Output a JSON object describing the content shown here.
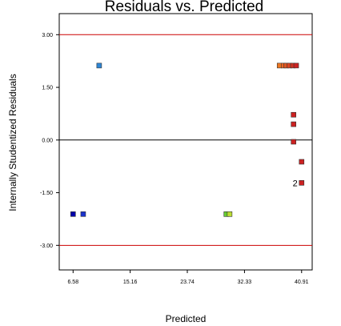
{
  "chart_data": {
    "type": "scatter",
    "title": "Residuals vs. Predicted",
    "xlabel": "Predicted",
    "ylabel": "Internally Studentized Residuals",
    "xlim": [
      4.5,
      42.5
    ],
    "ylim": [
      -3.7,
      3.6
    ],
    "x_ticks": [
      {
        "value": 6.58,
        "label": "6.58"
      },
      {
        "value": 15.16,
        "label": "15.16"
      },
      {
        "value": 23.74,
        "label": "23.74"
      },
      {
        "value": 32.33,
        "label": "32.33"
      },
      {
        "value": 40.91,
        "label": "40.91"
      }
    ],
    "y_ticks": [
      {
        "value": 3.0,
        "label": "3.00"
      },
      {
        "value": 1.5,
        "label": "1.50"
      },
      {
        "value": 0.0,
        "label": "0.00"
      },
      {
        "value": -1.5,
        "label": "-1.50"
      },
      {
        "value": -3.0,
        "label": "-3.00"
      }
    ],
    "reference_lines": [
      {
        "y": 3.0,
        "color": "#cc0000"
      },
      {
        "y": 0.0,
        "color": "#000000"
      },
      {
        "y": -3.0,
        "color": "#cc0000"
      }
    ],
    "grid": false,
    "points": [
      {
        "x": 6.58,
        "y": -2.11,
        "color": "#0000aa"
      },
      {
        "x": 8.1,
        "y": -2.11,
        "color": "#1a33cc"
      },
      {
        "x": 10.5,
        "y": 2.12,
        "color": "#2e86d6"
      },
      {
        "x": 29.6,
        "y": -2.11,
        "color": "#66cc33"
      },
      {
        "x": 30.1,
        "y": -2.11,
        "color": "#bbdd33"
      },
      {
        "x": 37.6,
        "y": 2.12,
        "color": "#ee7722"
      },
      {
        "x": 38.2,
        "y": 2.12,
        "color": "#ee6622"
      },
      {
        "x": 38.6,
        "y": 2.12,
        "color": "#dd5522"
      },
      {
        "x": 39.1,
        "y": 2.12,
        "color": "#dd4422"
      },
      {
        "x": 39.6,
        "y": 2.12,
        "color": "#cc3322"
      },
      {
        "x": 40.1,
        "y": 2.12,
        "color": "#cc2222"
      },
      {
        "x": 39.7,
        "y": 0.72,
        "color": "#cc2222"
      },
      {
        "x": 39.7,
        "y": 0.45,
        "color": "#cc2222"
      },
      {
        "x": 39.7,
        "y": -0.05,
        "color": "#cc2222"
      },
      {
        "x": 40.91,
        "y": -0.62,
        "color": "#cc2222"
      },
      {
        "x": 40.91,
        "y": -1.22,
        "color": "#cc2222"
      }
    ],
    "annotations": [
      {
        "x": 40.91,
        "y": -1.22,
        "text": "2"
      }
    ]
  }
}
